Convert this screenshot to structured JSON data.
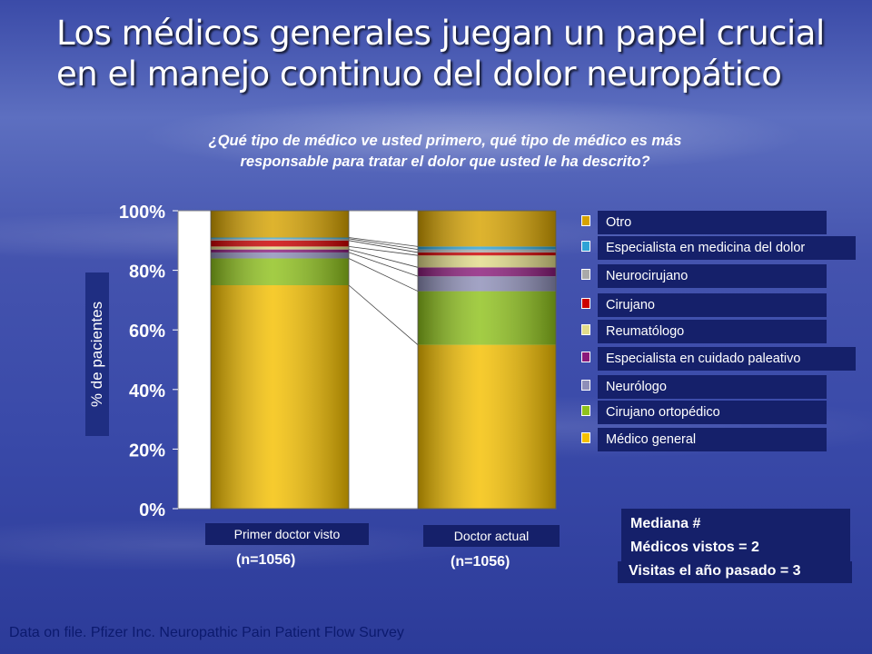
{
  "title_lines": [
    "Los médicos generales juegan un papel crucial",
    "en el manejo continuo del dolor neuropático"
  ],
  "question_lines": [
    "¿Qué tipo de médico ve usted primero, qué tipo de médico es más",
    "responsable para tratar el dolor que usted le ha descrito?"
  ],
  "chart_data": {
    "type": "bar",
    "stacked": true,
    "categories": [
      "Primer doctor visto",
      "Doctor actual"
    ],
    "category_n": [
      "(n=1056)",
      "(n=1056)"
    ],
    "ylabel": "% de pacientes",
    "ylim": [
      0,
      100
    ],
    "yticks": [
      "0%",
      "20%",
      "40%",
      "60%",
      "80%",
      "100%"
    ],
    "series": [
      {
        "name": "Médico general",
        "values": [
          75,
          55
        ],
        "color": "#f5c000"
      },
      {
        "name": "Cirujano ortopédico",
        "values": [
          9,
          18
        ],
        "color": "#8fc21c"
      },
      {
        "name": "Neurólogo",
        "values": [
          2,
          5
        ],
        "color": "#8e8fb8"
      },
      {
        "name": "Especialista en cuidado paleativo",
        "values": [
          1,
          3
        ],
        "color": "#8a1a7a"
      },
      {
        "name": "Reumatólogo",
        "values": [
          1,
          4
        ],
        "color": "#e2dc8a"
      },
      {
        "name": "Cirujano",
        "values": [
          2,
          1
        ],
        "color": "#cc0000"
      },
      {
        "name": "Neurocirujano",
        "values": [
          0.6,
          1
        ],
        "color": "#a9a9a9"
      },
      {
        "name": "Especialista en medicina del dolor",
        "values": [
          0.4,
          1
        ],
        "color": "#2ea3d6"
      },
      {
        "name": "Otro",
        "values": [
          9,
          12
        ],
        "color": "#d7a300"
      }
    ]
  },
  "median": {
    "line1": "Mediana #",
    "line2": "Médicos vistos = 2",
    "line3": "Visitas el año pasado = 3"
  },
  "footer": "Data on file. Pfizer Inc. Neuropathic Pain Patient Flow Survey"
}
